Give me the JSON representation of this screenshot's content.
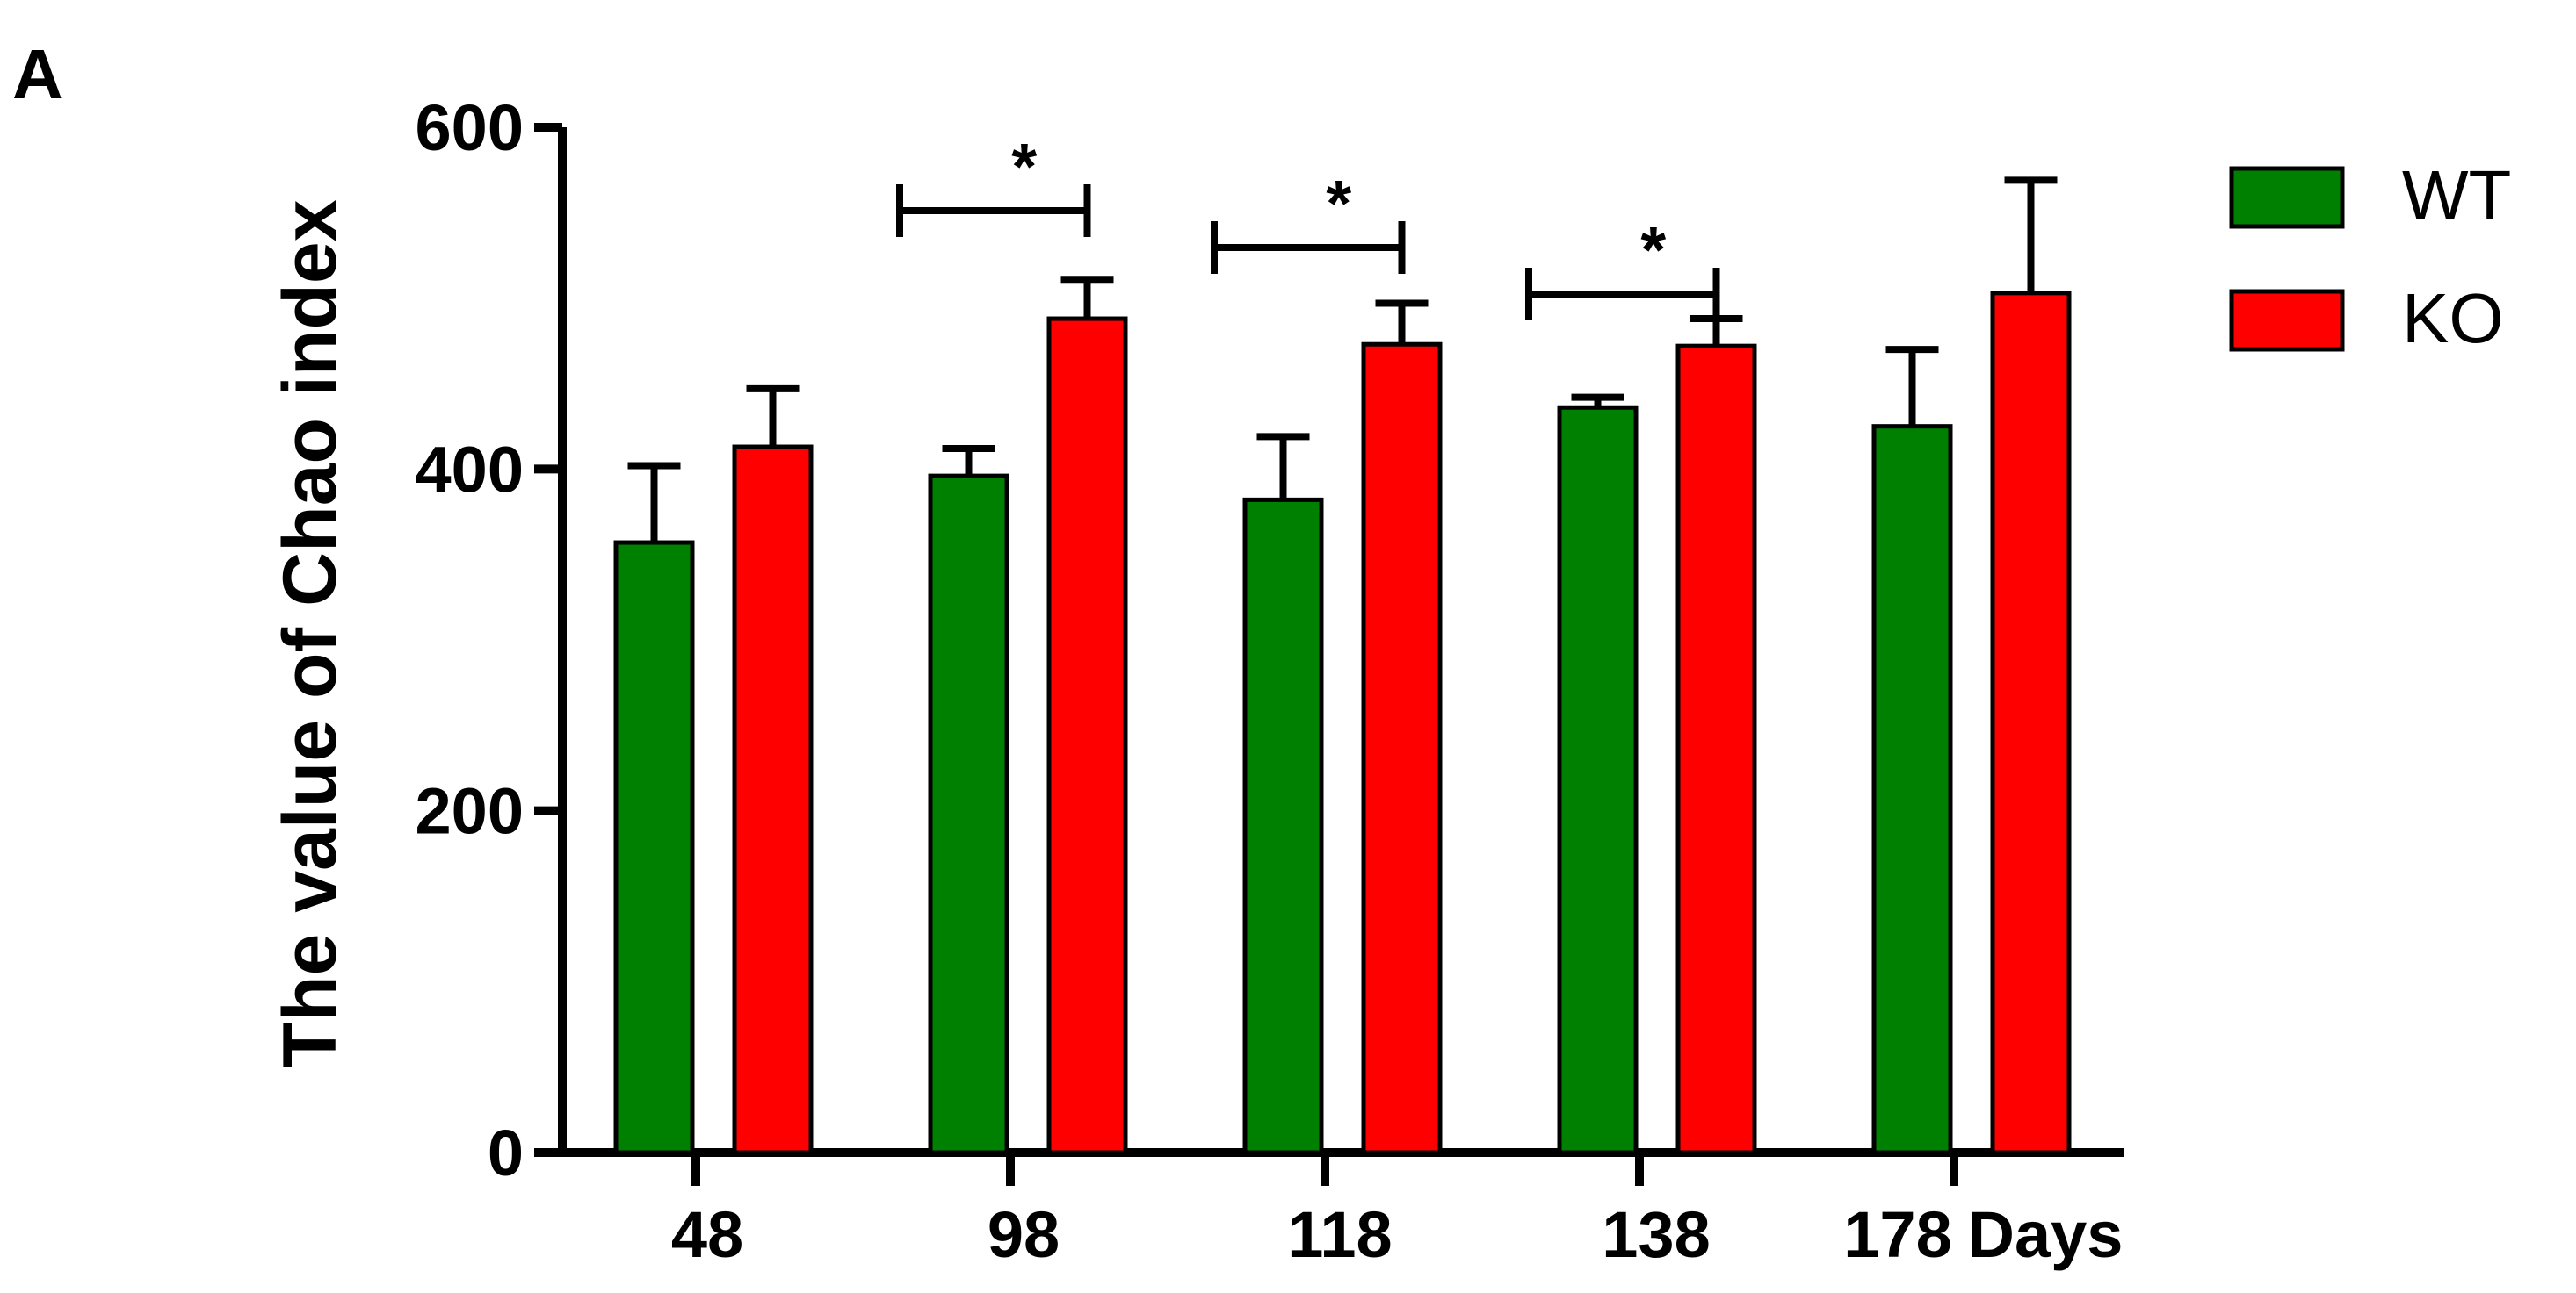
{
  "panel_label": "A",
  "chart_data": {
    "type": "bar",
    "title": "",
    "ylabel": "The value of Chao index",
    "xlabel": "",
    "x_unit_label": "Days",
    "categories": [
      "48",
      "98",
      "118",
      "138",
      "178"
    ],
    "ylim": [
      0,
      600
    ],
    "yticks": [
      "0",
      "200",
      "400",
      "600"
    ],
    "grid": false,
    "legend_position": "top-right",
    "series": [
      {
        "name": "WT",
        "color": "#008000",
        "values": [
          357,
          396,
          382,
          436,
          425
        ],
        "errors": [
          45,
          16,
          37,
          6,
          45
        ]
      },
      {
        "name": "KO",
        "color": "#ff0000",
        "values": [
          413,
          488,
          473,
          472,
          503
        ],
        "errors": [
          34,
          23,
          24,
          16,
          66
        ]
      }
    ],
    "significance": [
      {
        "category": "98",
        "label": "*"
      },
      {
        "category": "118",
        "label": "*"
      },
      {
        "category": "138",
        "label": "*"
      }
    ]
  }
}
